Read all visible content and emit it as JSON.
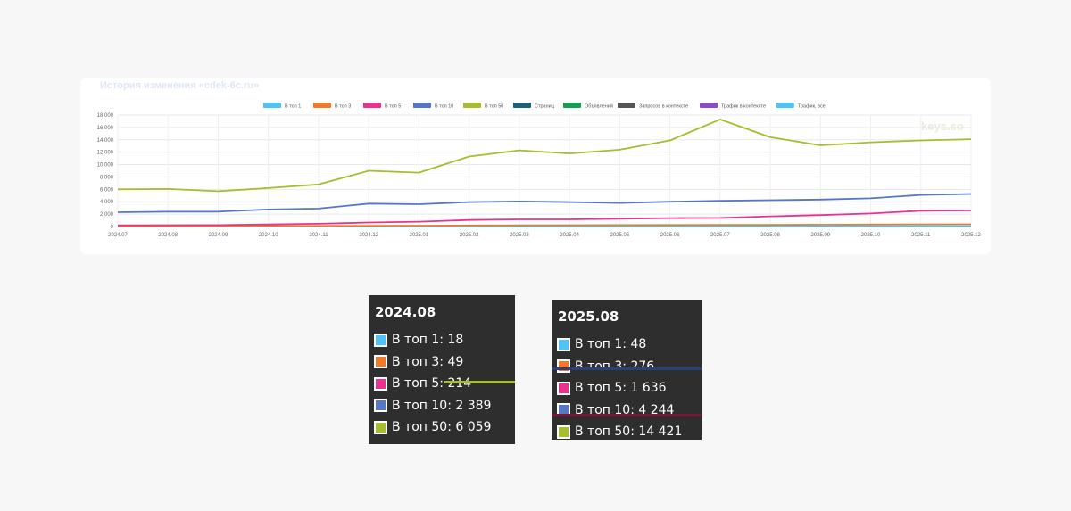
{
  "chart_data": {
    "type": "line",
    "title": "История изменения «cdek-6c.ru»",
    "watermark": "keys.so",
    "x": [
      "2024.07",
      "2024.08",
      "2024.09",
      "2024.10",
      "2024.11",
      "2024.12",
      "2025.01",
      "2025.02",
      "2025.03",
      "2025.04",
      "2025.05",
      "2025.06",
      "2025.07",
      "2025.08",
      "2025.09",
      "2025.10",
      "2025.11",
      "2025.12"
    ],
    "ylim": [
      0,
      18000
    ],
    "yticks": [
      "0",
      "2 000",
      "4 000",
      "6 000",
      "8 000",
      "10 000",
      "12 000",
      "14 000",
      "16 000",
      "18 000"
    ],
    "grid": true,
    "legend_position": "top",
    "legend": [
      {
        "name": "В топ 1",
        "color": "#4fc3f7"
      },
      {
        "name": "В топ 3",
        "color": "#f07a2c"
      },
      {
        "name": "В топ 5",
        "color": "#e8338f"
      },
      {
        "name": "В топ 10",
        "color": "#5577c4"
      },
      {
        "name": "В топ 50",
        "color": "#a5be2f"
      },
      {
        "name": "Страниц",
        "color": "#1d5f7a"
      },
      {
        "name": "Объявлений",
        "color": "#12a04f"
      },
      {
        "name": "Запросов в контексте",
        "color": "#555555"
      },
      {
        "name": "Трафик в контексте",
        "color": "#8a4cc4"
      },
      {
        "name": "Трафик, все",
        "color": "#4fc3f7"
      }
    ],
    "series": [
      {
        "name": "В топ 1",
        "color": "#4fc3f7",
        "values": [
          15,
          18,
          20,
          22,
          25,
          28,
          30,
          32,
          35,
          37,
          40,
          44,
          46,
          48,
          50,
          52,
          55,
          58
        ]
      },
      {
        "name": "В топ 3",
        "color": "#f07a2c",
        "values": [
          40,
          49,
          55,
          80,
          100,
          130,
          150,
          180,
          200,
          210,
          230,
          250,
          260,
          276,
          290,
          310,
          340,
          360
        ]
      },
      {
        "name": "В топ 5",
        "color": "#e8338f",
        "values": [
          190,
          214,
          230,
          330,
          450,
          650,
          780,
          1050,
          1150,
          1150,
          1250,
          1350,
          1380,
          1636,
          1850,
          2100,
          2550,
          2600
        ]
      },
      {
        "name": "В топ 10",
        "color": "#5577c4",
        "values": [
          2300,
          2389,
          2400,
          2750,
          2900,
          3700,
          3600,
          3950,
          4050,
          3950,
          3800,
          4000,
          4150,
          4244,
          4350,
          4550,
          5100,
          5250
        ]
      },
      {
        "name": "В топ 50",
        "color": "#a5be2f",
        "values": [
          6000,
          6059,
          5700,
          6200,
          6800,
          9000,
          8700,
          11300,
          12300,
          11800,
          12400,
          13900,
          17300,
          14421,
          13100,
          13600,
          13900,
          14100
        ]
      }
    ]
  },
  "tooltips": [
    {
      "date": "2024.08",
      "rows": [
        {
          "label": "В топ 1: 18",
          "color": "#4fc3f7"
        },
        {
          "label": "В топ 3: 49",
          "color": "#f07a2c"
        },
        {
          "label": "В топ 5: 214",
          "color": "#e8338f"
        },
        {
          "label": "В топ 10: 2 389",
          "color": "#5577c4"
        },
        {
          "label": "В топ 50: 6 059",
          "color": "#a5be2f"
        }
      ]
    },
    {
      "date": "2025.08",
      "rows": [
        {
          "label": "В топ 1: 48",
          "color": "#4fc3f7"
        },
        {
          "label": "В топ 3: 276",
          "color": "#f07a2c"
        },
        {
          "label": "В топ 5: 1 636",
          "color": "#e8338f"
        },
        {
          "label": "В топ 10: 4 244",
          "color": "#5577c4"
        },
        {
          "label": "В топ 50: 14 421",
          "color": "#a5be2f"
        }
      ]
    }
  ]
}
